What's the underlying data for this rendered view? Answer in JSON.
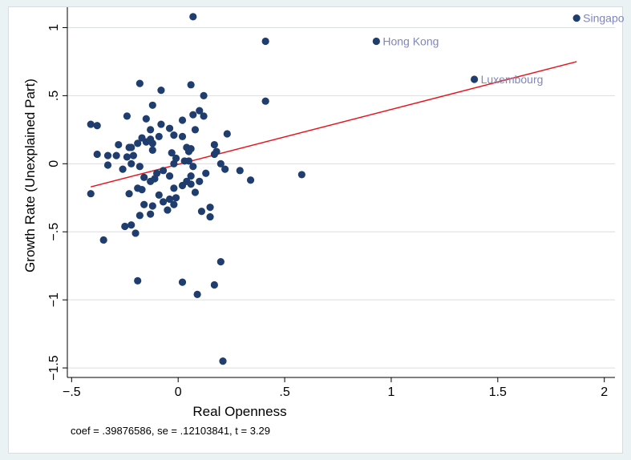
{
  "chart_data": {
    "type": "scatter",
    "xlabel": "Real Openness",
    "ylabel": "Growth Rate (Unexplained Part)",
    "xlim": [
      -0.52,
      2.05
    ],
    "ylim": [
      -1.57,
      1.15
    ],
    "xticks": [
      -0.5,
      0,
      0.5,
      1,
      1.5,
      2
    ],
    "xtick_labels": [
      "−.5",
      "0",
      ".5",
      "1",
      "1.5",
      "2"
    ],
    "yticks": [
      -1.5,
      -1,
      -0.5,
      0,
      0.5,
      1
    ],
    "ytick_labels": [
      "−1.5",
      "−1",
      "−.5",
      "0",
      ".5",
      "1"
    ],
    "grid": "horizontal",
    "colors": {
      "marker": "#1f3d6e",
      "fit_line": "#e8131b",
      "labels": "#7f86bd",
      "grid": "#d9dee3"
    },
    "fit_line": {
      "x": [
        -0.41,
        1.87
      ],
      "y": [
        -0.17,
        0.75
      ]
    },
    "points": [
      {
        "x": 0.07,
        "y": 1.08
      },
      {
        "x": 0.41,
        "y": 0.9
      },
      {
        "x": 0.41,
        "y": 0.46
      },
      {
        "x": -0.18,
        "y": 0.59
      },
      {
        "x": 0.06,
        "y": 0.58
      },
      {
        "x": -0.08,
        "y": 0.54
      },
      {
        "x": 0.12,
        "y": 0.5
      },
      {
        "x": -0.12,
        "y": 0.43
      },
      {
        "x": 0.1,
        "y": 0.39
      },
      {
        "x": 0.07,
        "y": 0.36
      },
      {
        "x": 0.12,
        "y": 0.35
      },
      {
        "x": -0.24,
        "y": 0.35
      },
      {
        "x": -0.15,
        "y": 0.33
      },
      {
        "x": 0.02,
        "y": 0.32
      },
      {
        "x": -0.08,
        "y": 0.29
      },
      {
        "x": -0.41,
        "y": 0.29
      },
      {
        "x": -0.38,
        "y": 0.28
      },
      {
        "x": -0.04,
        "y": 0.26
      },
      {
        "x": 0.08,
        "y": 0.25
      },
      {
        "x": -0.13,
        "y": 0.25
      },
      {
        "x": 0.23,
        "y": 0.22
      },
      {
        "x": -0.02,
        "y": 0.21
      },
      {
        "x": 0.02,
        "y": 0.2
      },
      {
        "x": -0.09,
        "y": 0.2
      },
      {
        "x": -0.17,
        "y": 0.19
      },
      {
        "x": -0.13,
        "y": 0.18
      },
      {
        "x": -0.15,
        "y": 0.16
      },
      {
        "x": -0.19,
        "y": 0.15
      },
      {
        "x": -0.12,
        "y": 0.15
      },
      {
        "x": -0.28,
        "y": 0.14
      },
      {
        "x": 0.17,
        "y": 0.14
      },
      {
        "x": -0.22,
        "y": 0.12
      },
      {
        "x": -0.23,
        "y": 0.12
      },
      {
        "x": 0.04,
        "y": 0.12
      },
      {
        "x": 0.06,
        "y": 0.11
      },
      {
        "x": 0.05,
        "y": 0.09
      },
      {
        "x": -0.12,
        "y": 0.1
      },
      {
        "x": 0.18,
        "y": 0.09
      },
      {
        "x": -0.03,
        "y": 0.08
      },
      {
        "x": -0.38,
        "y": 0.07
      },
      {
        "x": -0.33,
        "y": 0.06
      },
      {
        "x": -0.29,
        "y": 0.06
      },
      {
        "x": -0.24,
        "y": 0.05
      },
      {
        "x": -0.21,
        "y": 0.06
      },
      {
        "x": 0.17,
        "y": 0.07
      },
      {
        "x": -0.01,
        "y": 0.04
      },
      {
        "x": 0.03,
        "y": 0.02
      },
      {
        "x": 0.05,
        "y": 0.02
      },
      {
        "x": -0.22,
        "y": 0.0
      },
      {
        "x": -0.18,
        "y": -0.02
      },
      {
        "x": -0.33,
        "y": -0.01
      },
      {
        "x": -0.02,
        "y": 0.0
      },
      {
        "x": 0.2,
        "y": 0.0
      },
      {
        "x": 0.07,
        "y": -0.02
      },
      {
        "x": -0.26,
        "y": -0.04
      },
      {
        "x": 0.22,
        "y": -0.04
      },
      {
        "x": 0.29,
        "y": -0.05
      },
      {
        "x": -0.07,
        "y": -0.05
      },
      {
        "x": -0.1,
        "y": -0.07
      },
      {
        "x": 0.13,
        "y": -0.07
      },
      {
        "x": 0.58,
        "y": -0.08
      },
      {
        "x": -0.04,
        "y": -0.09
      },
      {
        "x": -0.16,
        "y": -0.1
      },
      {
        "x": 0.06,
        "y": -0.09
      },
      {
        "x": -0.11,
        "y": -0.11
      },
      {
        "x": -0.13,
        "y": -0.13
      },
      {
        "x": 0.34,
        "y": -0.12
      },
      {
        "x": 0.04,
        "y": -0.13
      },
      {
        "x": 0.1,
        "y": -0.13
      },
      {
        "x": 0.06,
        "y": -0.15
      },
      {
        "x": 0.02,
        "y": -0.16
      },
      {
        "x": -0.19,
        "y": -0.18
      },
      {
        "x": -0.17,
        "y": -0.19
      },
      {
        "x": 0.08,
        "y": -0.21
      },
      {
        "x": -0.02,
        "y": -0.18
      },
      {
        "x": -0.41,
        "y": -0.22
      },
      {
        "x": -0.23,
        "y": -0.22
      },
      {
        "x": -0.09,
        "y": -0.23
      },
      {
        "x": -0.01,
        "y": -0.25
      },
      {
        "x": -0.04,
        "y": -0.26
      },
      {
        "x": -0.12,
        "y": -0.31
      },
      {
        "x": -0.07,
        "y": -0.28
      },
      {
        "x": -0.16,
        "y": -0.3
      },
      {
        "x": 0.15,
        "y": -0.32
      },
      {
        "x": -0.02,
        "y": -0.3
      },
      {
        "x": 0.11,
        "y": -0.35
      },
      {
        "x": -0.05,
        "y": -0.34
      },
      {
        "x": -0.13,
        "y": -0.37
      },
      {
        "x": -0.18,
        "y": -0.38
      },
      {
        "x": 0.15,
        "y": -0.39
      },
      {
        "x": -0.22,
        "y": -0.45
      },
      {
        "x": -0.25,
        "y": -0.46
      },
      {
        "x": -0.2,
        "y": -0.51
      },
      {
        "x": -0.35,
        "y": -0.56
      },
      {
        "x": 0.2,
        "y": -0.72
      },
      {
        "x": -0.19,
        "y": -0.86
      },
      {
        "x": 0.02,
        "y": -0.87
      },
      {
        "x": 0.17,
        "y": -0.89
      },
      {
        "x": 0.09,
        "y": -0.96
      },
      {
        "x": 0.21,
        "y": -1.45
      },
      {
        "x": 0.93,
        "y": 0.9,
        "label": "Hong Kong"
      },
      {
        "x": 1.39,
        "y": 0.62,
        "label": "Luxembourg"
      },
      {
        "x": 1.87,
        "y": 1.07,
        "label": "Singapo"
      }
    ]
  },
  "footnote": "coef = .39876586, se = .12103841, t = 3.29"
}
